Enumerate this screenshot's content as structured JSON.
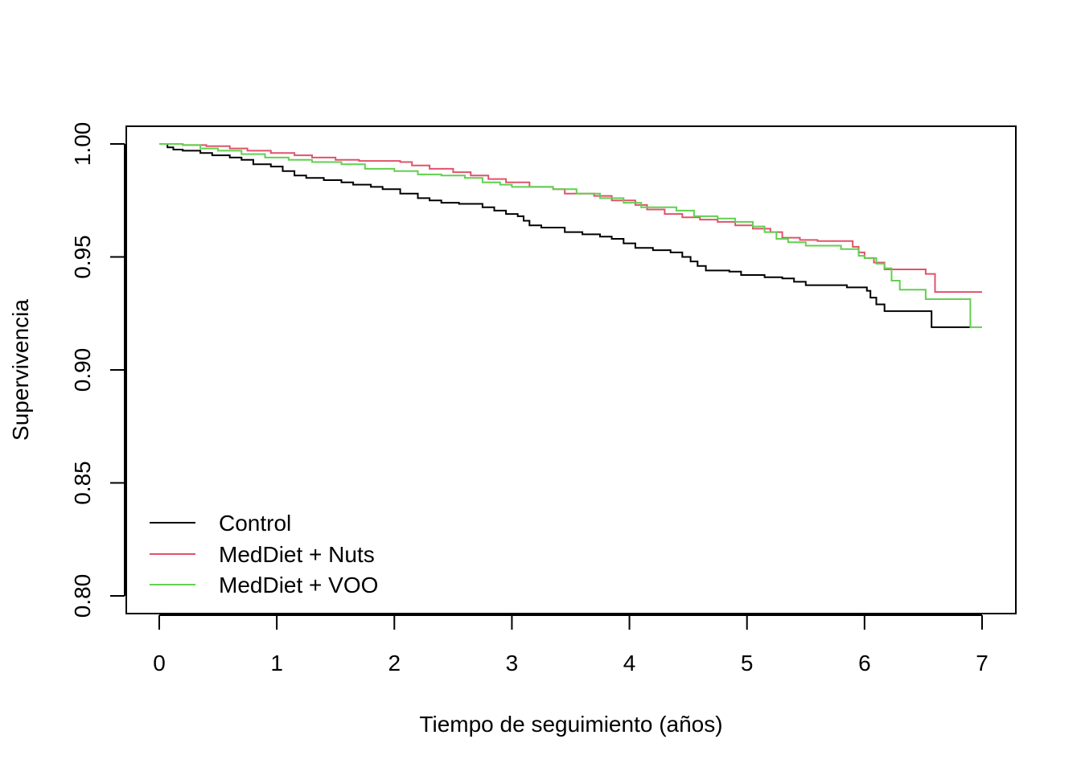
{
  "chart_data": {
    "type": "line",
    "subtype": "kaplan-meier step",
    "title": "",
    "xlabel": "Tiempo de seguimiento (años)",
    "ylabel": "Supervivencia",
    "xlim": [
      -0.29,
      7.29
    ],
    "ylim": [
      0.792,
      1.008
    ],
    "xticks": [
      0,
      1,
      2,
      3,
      4,
      5,
      6,
      7
    ],
    "xtick_labels": [
      "0",
      "1",
      "2",
      "3",
      "4",
      "5",
      "6",
      "7"
    ],
    "yticks": [
      0.8,
      0.85,
      0.9,
      0.95,
      1.0
    ],
    "ytick_labels": [
      "0.80",
      "0.85",
      "0.90",
      "0.95",
      "1.00"
    ],
    "grid": false,
    "legend": {
      "placement": "bottom-left",
      "entries": [
        "Control",
        "MedDiet + Nuts",
        "MedDiet + VOO"
      ]
    },
    "series": [
      {
        "name": "Control",
        "color": "#000000",
        "x": [
          0,
          0.07,
          0.12,
          0.2,
          0.35,
          0.45,
          0.6,
          0.7,
          0.8,
          0.95,
          1.05,
          1.15,
          1.25,
          1.4,
          1.55,
          1.65,
          1.8,
          1.9,
          2.05,
          2.2,
          2.3,
          2.4,
          2.55,
          2.75,
          2.85,
          2.95,
          3.05,
          3.1,
          3.15,
          3.25,
          3.45,
          3.6,
          3.75,
          3.85,
          3.95,
          4.05,
          4.2,
          4.35,
          4.45,
          4.52,
          4.58,
          4.65,
          4.85,
          4.95,
          5.15,
          5.3,
          5.4,
          5.5,
          5.85,
          6.02,
          6.05,
          6.1,
          6.17,
          6.57,
          6.88,
          6.9
        ],
        "y": [
          1.0,
          0.9985,
          0.9975,
          0.997,
          0.996,
          0.995,
          0.994,
          0.993,
          0.991,
          0.99,
          0.988,
          0.986,
          0.985,
          0.984,
          0.983,
          0.982,
          0.981,
          0.98,
          0.978,
          0.976,
          0.975,
          0.974,
          0.9735,
          0.972,
          0.9705,
          0.969,
          0.968,
          0.966,
          0.964,
          0.963,
          0.961,
          0.96,
          0.959,
          0.958,
          0.956,
          0.954,
          0.953,
          0.952,
          0.95,
          0.948,
          0.946,
          0.944,
          0.9435,
          0.942,
          0.941,
          0.9405,
          0.939,
          0.9375,
          0.9365,
          0.935,
          0.932,
          0.929,
          0.926,
          0.9189,
          0.9189,
          0.9189
        ]
      },
      {
        "name": "MedDiet + Nuts",
        "color": "#DF536B",
        "x": [
          0,
          0.2,
          0.4,
          0.6,
          0.75,
          0.95,
          1.15,
          1.3,
          1.5,
          1.7,
          2.05,
          2.15,
          2.3,
          2.5,
          2.65,
          2.8,
          2.95,
          3.15,
          3.35,
          3.45,
          3.7,
          3.85,
          4.05,
          4.15,
          4.3,
          4.45,
          4.6,
          4.75,
          4.9,
          5.05,
          5.2,
          5.3,
          5.45,
          5.6,
          5.9,
          5.95,
          6.0,
          6.08,
          6.17,
          6.52,
          6.6,
          7.0
        ],
        "y": [
          1.0,
          0.9995,
          0.999,
          0.998,
          0.997,
          0.996,
          0.995,
          0.994,
          0.993,
          0.9925,
          0.992,
          0.9905,
          0.989,
          0.9875,
          0.986,
          0.9845,
          0.983,
          0.981,
          0.98,
          0.978,
          0.977,
          0.975,
          0.973,
          0.971,
          0.969,
          0.9675,
          0.9665,
          0.9655,
          0.964,
          0.9625,
          0.961,
          0.9585,
          0.9575,
          0.957,
          0.9545,
          0.952,
          0.9495,
          0.9475,
          0.9445,
          0.9425,
          0.9345,
          0.9345
        ]
      },
      {
        "name": "MedDiet + VOO",
        "color": "#61D04F",
        "x": [
          0,
          0.2,
          0.35,
          0.5,
          0.7,
          0.9,
          1.1,
          1.3,
          1.55,
          1.75,
          2.0,
          2.2,
          2.4,
          2.6,
          2.75,
          2.9,
          3.0,
          3.35,
          3.55,
          3.75,
          3.95,
          4.1,
          4.4,
          4.55,
          4.75,
          4.9,
          5.05,
          5.15,
          5.25,
          5.35,
          5.5,
          5.8,
          5.95,
          6.0,
          6.1,
          6.17,
          6.23,
          6.3,
          6.52,
          6.88,
          6.9,
          7.0
        ],
        "y": [
          1.0,
          0.9995,
          0.998,
          0.997,
          0.9955,
          0.994,
          0.993,
          0.992,
          0.991,
          0.989,
          0.988,
          0.9865,
          0.986,
          0.985,
          0.983,
          0.982,
          0.981,
          0.98,
          0.978,
          0.976,
          0.974,
          0.972,
          0.9705,
          0.968,
          0.967,
          0.9655,
          0.9635,
          0.961,
          0.958,
          0.9565,
          0.955,
          0.9535,
          0.9505,
          0.9495,
          0.947,
          0.945,
          0.9395,
          0.9355,
          0.9313,
          0.9313,
          0.9189,
          0.9189
        ]
      }
    ]
  }
}
